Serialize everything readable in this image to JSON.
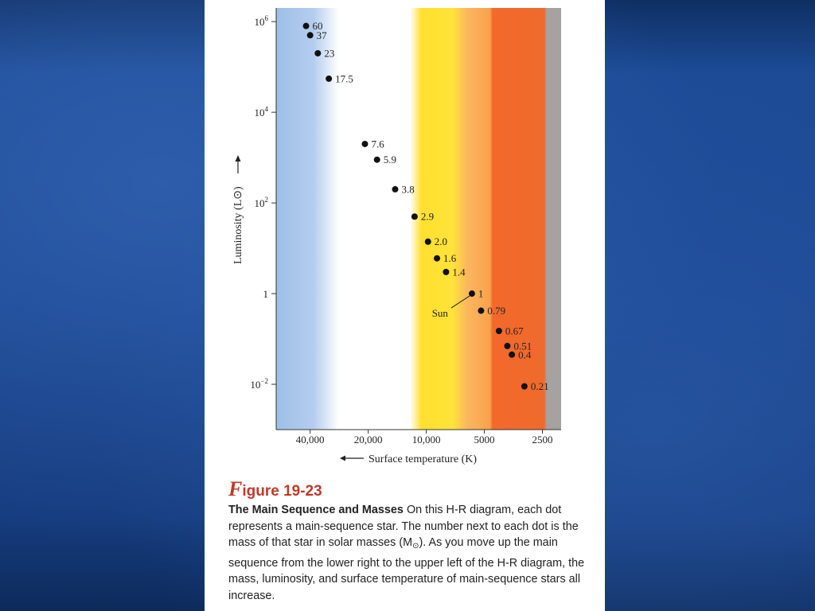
{
  "figure": {
    "label": "Figure 19-23",
    "label_initial": "F",
    "label_rest": "igure 19-23",
    "caption_bold": "The Main Sequence and Masses",
    "caption_text": "On this H-R diagram, each dot represents a main-sequence star. The number next to each dot is the mass of that star in solar masses (M",
    "caption_symbol": "⊙",
    "caption_end": "). As you move up the main sequence from the lower right to the upper left of the H-R diagram, the mass, luminosity, and surface temperature of main-sequence stars all increase."
  },
  "chart_data": {
    "type": "scatter",
    "xlabel": "Surface temperature (K)",
    "ylabel": "Luminosity (L⊙)",
    "x_scale": "log-reversed",
    "y_scale": "log",
    "xlim": [
      60000,
      2000
    ],
    "ylim": [
      0.001,
      2000000
    ],
    "x_ticks": [
      {
        "value": 40000,
        "label": "40,000"
      },
      {
        "value": 20000,
        "label": "20,000"
      },
      {
        "value": 10000,
        "label": "10,000"
      },
      {
        "value": 5000,
        "label": "5000"
      },
      {
        "value": 2500,
        "label": "2500"
      }
    ],
    "y_ticks": [
      {
        "value": 1000000,
        "label": "10",
        "exp": "6"
      },
      {
        "value": 10000,
        "label": "10",
        "exp": "4"
      },
      {
        "value": 100,
        "label": "10",
        "exp": "2"
      },
      {
        "value": 1,
        "label": "1",
        "exp": ""
      },
      {
        "value": 0.01,
        "label": "10",
        "exp": "−2"
      }
    ],
    "color_bands": [
      "#a9c6ea",
      "#ffffff",
      "#ffe033",
      "#fbb55a",
      "#f06a2c",
      "#a7a2a2"
    ],
    "points": [
      {
        "mass": "60",
        "temperature": 42000,
        "luminosity": 800000
      },
      {
        "mass": "37",
        "temperature": 40000,
        "luminosity": 500000
      },
      {
        "mass": "23",
        "temperature": 36500,
        "luminosity": 200000
      },
      {
        "mass": "17.5",
        "temperature": 32000,
        "luminosity": 55000
      },
      {
        "mass": "7.6",
        "temperature": 20800,
        "luminosity": 2000
      },
      {
        "mass": "5.9",
        "temperature": 18000,
        "luminosity": 900
      },
      {
        "mass": "3.8",
        "temperature": 14500,
        "luminosity": 200
      },
      {
        "mass": "2.9",
        "temperature": 11500,
        "luminosity": 50
      },
      {
        "mass": "2.0",
        "temperature": 9800,
        "luminosity": 14
      },
      {
        "mass": "1.6",
        "temperature": 8800,
        "luminosity": 6
      },
      {
        "mass": "1.4",
        "temperature": 7900,
        "luminosity": 3
      },
      {
        "mass": "1",
        "temperature": 5800,
        "luminosity": 1
      },
      {
        "mass": "0.79",
        "temperature": 5200,
        "luminosity": 0.42
      },
      {
        "mass": "0.67",
        "temperature": 4200,
        "luminosity": 0.15
      },
      {
        "mass": "0.51",
        "temperature": 3800,
        "luminosity": 0.07
      },
      {
        "mass": "0.4",
        "temperature": 3600,
        "luminosity": 0.045
      },
      {
        "mass": "0.21",
        "temperature": 3100,
        "luminosity": 0.009
      }
    ],
    "annotation": {
      "label": "Sun",
      "target_mass": "1"
    }
  }
}
